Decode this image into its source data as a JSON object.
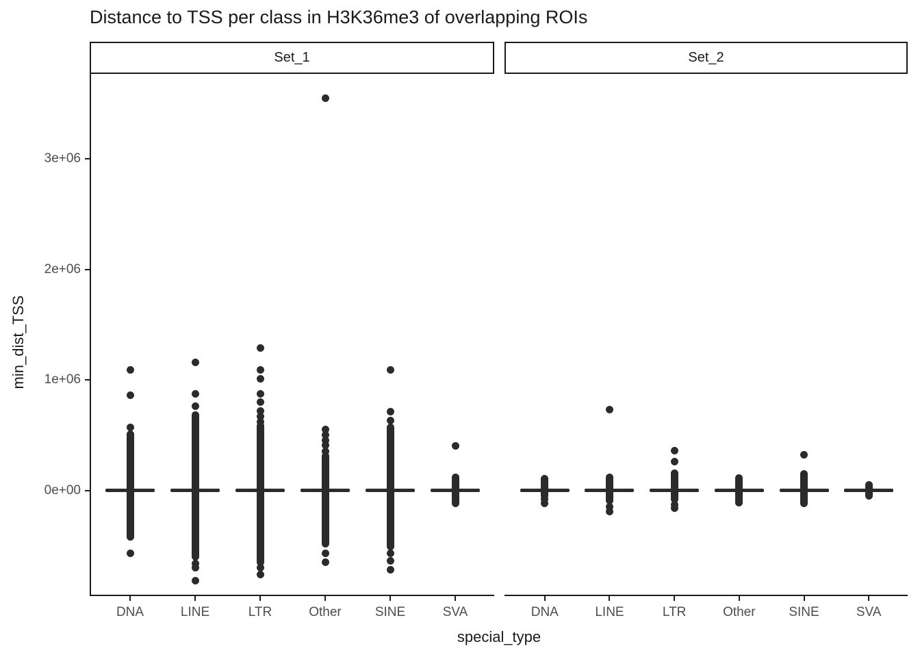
{
  "chart_data": {
    "type": "scatter",
    "subtype": "collapsed-boxplot-with-outliers",
    "title": "Distance to TSS per class in H3K36me3 of overlapping ROIs",
    "xlabel": "special_type",
    "ylabel": "min_dist_TSS",
    "legend": "none",
    "grid": "off",
    "ylim": [
      -940000,
      3760000
    ],
    "y_ticks": [
      {
        "label": "0e+00",
        "value": 0
      },
      {
        "label": "1e+06",
        "value": 1000000
      },
      {
        "label": "2e+06",
        "value": 2000000
      },
      {
        "label": "3e+06",
        "value": 3000000
      }
    ],
    "categories": [
      "DNA",
      "LINE",
      "LTR",
      "Other",
      "SINE",
      "SVA"
    ],
    "facets": [
      {
        "label": "Set_1",
        "groups": [
          {
            "category": "DNA",
            "median": 0,
            "dense_range": [
              -420000,
              510000
            ],
            "outliers": [
              1090000,
              860000,
              570000,
              -570000
            ]
          },
          {
            "category": "LINE",
            "median": 0,
            "dense_range": [
              -600000,
              680000
            ],
            "outliers": [
              1160000,
              870000,
              760000,
              -660000,
              -700000,
              -820000
            ]
          },
          {
            "category": "LTR",
            "median": 0,
            "dense_range": [
              -650000,
              580000
            ],
            "outliers": [
              1290000,
              1090000,
              1010000,
              870000,
              800000,
              720000,
              670000,
              620000,
              -700000,
              -760000
            ]
          },
          {
            "category": "Other",
            "median": 0,
            "dense_range": [
              -480000,
              310000
            ],
            "outliers": [
              3550000,
              550000,
              500000,
              450000,
              410000,
              350000,
              -570000,
              -650000
            ]
          },
          {
            "category": "SINE",
            "median": 0,
            "dense_range": [
              -510000,
              570000
            ],
            "outliers": [
              1090000,
              710000,
              630000,
              -570000,
              -640000,
              -720000
            ]
          },
          {
            "category": "SVA",
            "median": 0,
            "dense_range": [
              -120000,
              120000
            ],
            "outliers": [
              400000
            ]
          }
        ]
      },
      {
        "label": "Set_2",
        "groups": [
          {
            "category": "DNA",
            "median": 0,
            "dense_range": [
              -50000,
              105000
            ],
            "outliers": [
              -80000,
              -120000
            ]
          },
          {
            "category": "LINE",
            "median": 0,
            "dense_range": [
              -90000,
              115000
            ],
            "outliers": [
              730000,
              -150000,
              -190000
            ]
          },
          {
            "category": "LTR",
            "median": 0,
            "dense_range": [
              -80000,
              155000
            ],
            "outliers": [
              360000,
              260000,
              -130000,
              -160000
            ]
          },
          {
            "category": "Other",
            "median": 0,
            "dense_range": [
              -110000,
              110000
            ],
            "outliers": []
          },
          {
            "category": "SINE",
            "median": 0,
            "dense_range": [
              -120000,
              150000
            ],
            "outliers": [
              320000
            ]
          },
          {
            "category": "SVA",
            "median": 0,
            "dense_range": [
              -50000,
              50000
            ],
            "outliers": []
          }
        ]
      }
    ],
    "colors": {
      "point": "#2b2b2b",
      "axis_line": "#1a1a1a",
      "tick_text": "#4d4d4d",
      "strip_border": "#1a1a1a",
      "strip_background": "#ffffff",
      "panel_background": "#ffffff",
      "title_text": "#1a1a1a"
    }
  }
}
